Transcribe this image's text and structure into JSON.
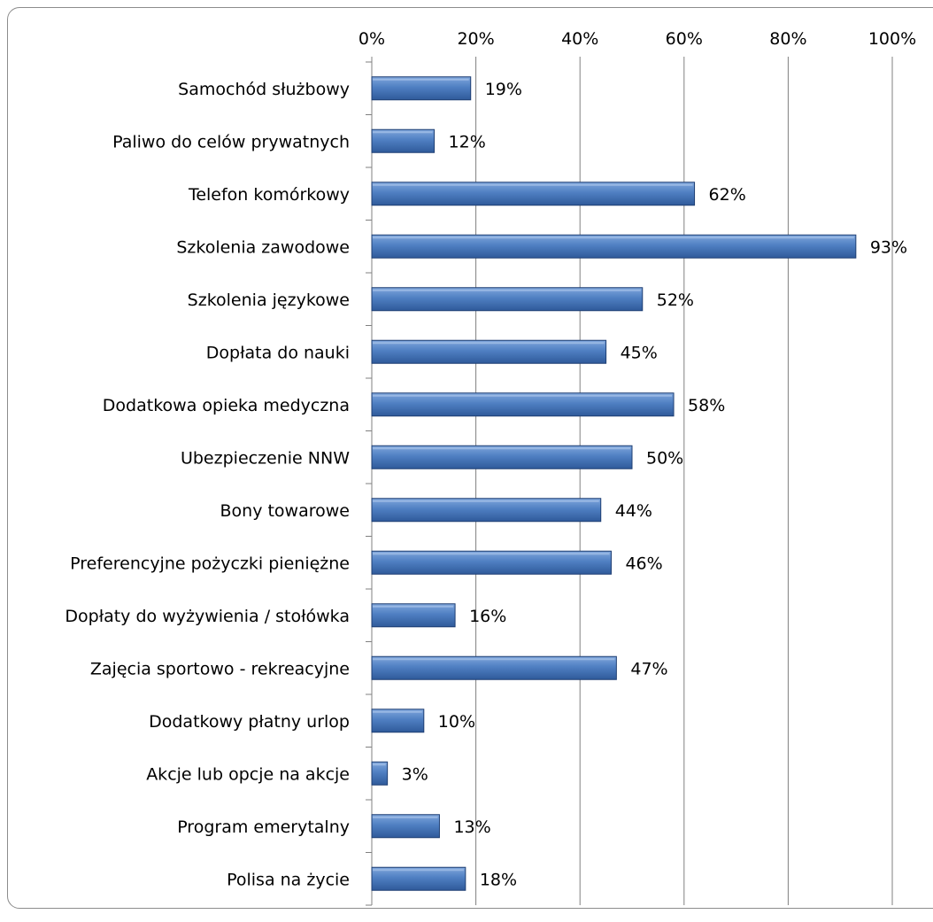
{
  "chart_data": {
    "type": "bar",
    "orientation": "horizontal",
    "categories": [
      "Samochód służbowy",
      "Paliwo do celów prywatnych",
      "Telefon komórkowy",
      "Szkolenia zawodowe",
      "Szkolenia językowe",
      "Dopłata do nauki",
      "Dodatkowa opieka medyczna",
      "Ubezpieczenie NNW",
      "Bony towarowe",
      "Preferencyjne pożyczki pieniężne",
      "Dopłaty do wyżywienia / stołówka",
      "Zajęcia sportowo - rekreacyjne",
      "Dodatkowy płatny urlop",
      "Akcje lub opcje na akcje",
      "Program emerytalny",
      "Polisa na życie"
    ],
    "values": [
      19,
      12,
      62,
      93,
      52,
      45,
      58,
      50,
      44,
      46,
      16,
      47,
      10,
      3,
      13,
      18
    ],
    "data_labels": [
      "19%",
      "12%",
      "62%",
      "93%",
      "52%",
      "45%",
      "58%",
      "50%",
      "44%",
      "46%",
      "16%",
      "47%",
      "10%",
      "3%",
      "13%",
      "18%"
    ],
    "x_ticks": [
      "0%",
      "20%",
      "40%",
      "60%",
      "80%",
      "100%"
    ],
    "xlim": [
      0,
      100
    ],
    "x_axis_position": "top",
    "grid": true,
    "legend": "none",
    "title": "",
    "xlabel": "",
    "ylabel": "",
    "colors": {
      "bar_light": "#7fa6dc",
      "bar_mid": "#4f7fc2",
      "bar_dark": "#2f5a9a",
      "bar_edge": "#1f3f73",
      "gridline": "#808080",
      "frame": "#8c8c8c"
    }
  }
}
